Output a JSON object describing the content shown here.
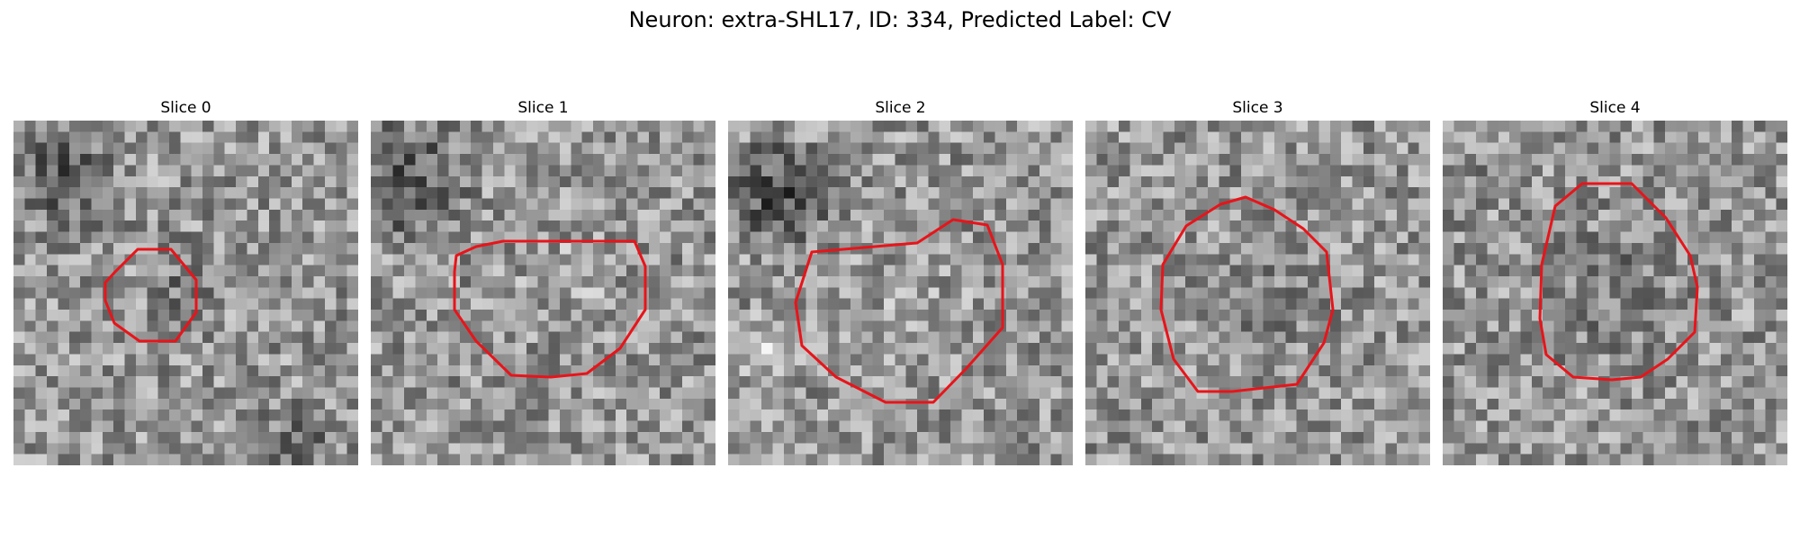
{
  "figure": {
    "title": "Neuron: extra-SHL17, ID: 334, Predicted Label: CV"
  },
  "panels": [
    {
      "title": "Slice 0"
    },
    {
      "title": "Slice 1"
    },
    {
      "title": "Slice 2"
    },
    {
      "title": "Slice 3"
    },
    {
      "title": "Slice 4"
    }
  ],
  "colors": {
    "contour": "#e8141a",
    "background": "#ffffff"
  }
}
